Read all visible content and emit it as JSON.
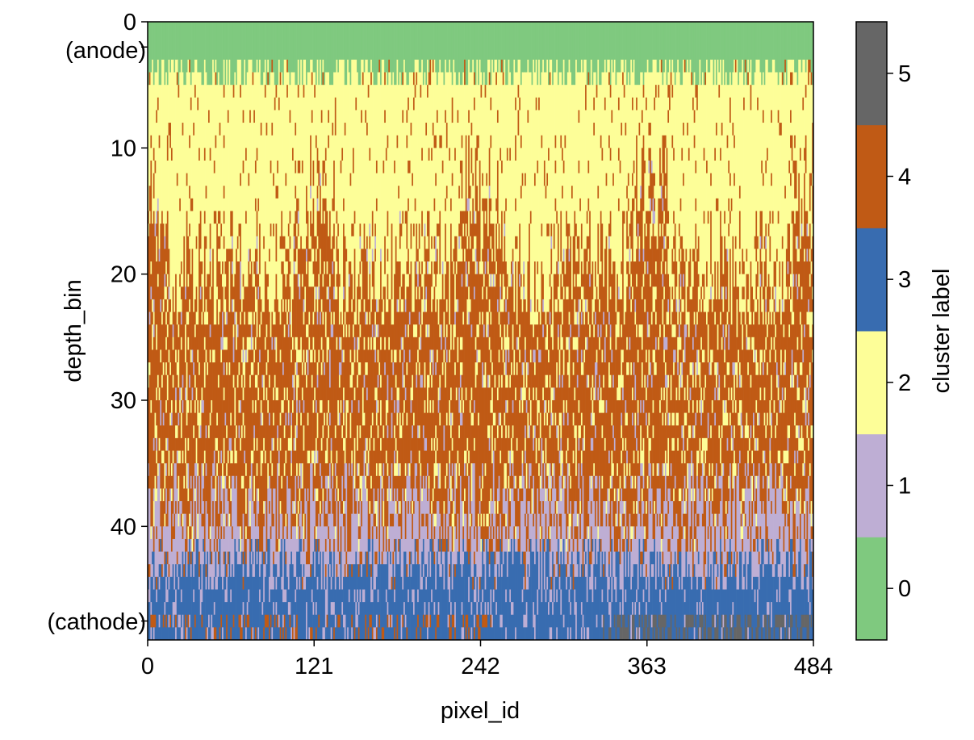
{
  "chart_data": {
    "type": "heatmap",
    "title": "",
    "xlabel": "pixel_id",
    "ylabel": "depth_bin",
    "colorbar_label": "cluster label",
    "x_range": [
      0,
      484
    ],
    "y_range": [
      0,
      49
    ],
    "y_inverted": true,
    "x_ticks": [
      0,
      121,
      242,
      363,
      484
    ],
    "y_ticks": [
      0,
      10,
      20,
      30,
      40
    ],
    "y_tick_labels": [
      "0",
      "10",
      "20",
      "30",
      "40"
    ],
    "y_annotations": [
      {
        "text": "(anode)",
        "depth": 2
      },
      {
        "text": "(cathode)",
        "depth": 47.5
      }
    ],
    "colorbar_ticks": [
      "0",
      "1",
      "2",
      "3",
      "4",
      "5"
    ],
    "cluster_colors": [
      "#7fc97f",
      "#beaed4",
      "#fdfe98",
      "#386cb0",
      "#c05a15",
      "#666666"
    ],
    "grid": false,
    "layers_note_free": [
      {
        "cluster": 0,
        "depth_start": 0,
        "depth_end": 3
      },
      {
        "cluster": 2,
        "depth_start": 3,
        "depth_end": 23
      },
      {
        "cluster": 4,
        "depth_start": 23,
        "depth_end": 37
      },
      {
        "cluster": 1,
        "depth_start": 37,
        "depth_end": 42
      },
      {
        "cluster": 3,
        "depth_start": 42,
        "depth_end": 49
      }
    ]
  }
}
